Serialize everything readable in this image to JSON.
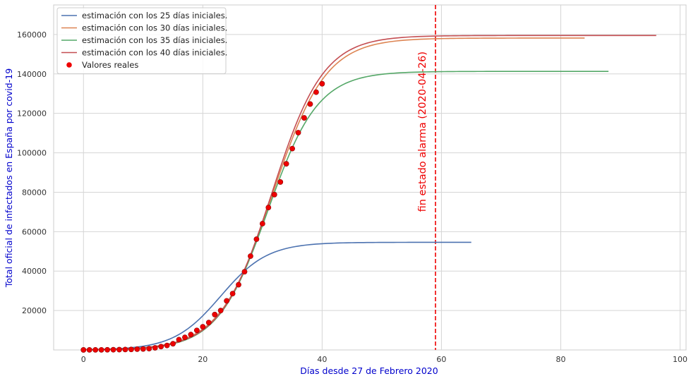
{
  "chart_data": {
    "type": "line",
    "xlabel": "Días desde 27 de Febrero 2020",
    "ylabel": "Total oficial de infectados en España por covid-19",
    "xlim": [
      -5,
      101
    ],
    "ylim": [
      0,
      175000
    ],
    "xticks": [
      0,
      20,
      40,
      60,
      80,
      100
    ],
    "yticks": [
      20000,
      40000,
      60000,
      80000,
      100000,
      120000,
      140000,
      160000
    ],
    "grid": true,
    "legend_position": "top-left",
    "label_color": "#0000cc",
    "series": [
      {
        "name": "estimación con los 25 días iniciales.",
        "color": "#4c72b0",
        "x_max": 65,
        "L": 54600,
        "k": 0.255,
        "x0": 23.0
      },
      {
        "name": "estimación con los 30 días iniciales.",
        "color": "#dd8452",
        "x_max": 84,
        "L": 158200,
        "k": 0.225,
        "x0": 31.7
      },
      {
        "name": "estimación con los 35 días iniciales.",
        "color": "#55a868",
        "x_max": 88,
        "L": 141300,
        "k": 0.238,
        "x0": 30.9
      },
      {
        "name": "estimación con los 40 días iniciales.",
        "color": "#c44e52",
        "x_max": 96,
        "L": 159500,
        "k": 0.232,
        "x0": 31.6
      }
    ],
    "scatter": {
      "name": "Valores reales",
      "color": "#ee0000",
      "x": [
        0,
        1,
        2,
        3,
        4,
        5,
        6,
        7,
        8,
        9,
        10,
        11,
        12,
        13,
        14,
        15,
        16,
        17,
        18,
        19,
        20,
        21,
        22,
        23,
        24,
        25,
        26,
        27,
        28,
        29,
        30,
        31,
        32,
        33,
        34,
        35,
        36,
        37,
        38,
        39,
        40
      ],
      "y": [
        23,
        32,
        45,
        57,
        84,
        120,
        165,
        222,
        259,
        400,
        500,
        673,
        1073,
        1695,
        2277,
        3146,
        5232,
        6391,
        7798,
        9942,
        11748,
        13910,
        17963,
        19980,
        24926,
        28572,
        33089,
        39673,
        47610,
        56188,
        64059,
        72248,
        78797,
        85195,
        94417,
        102136,
        110238,
        117710,
        124736,
        130759,
        135032
      ]
    },
    "annotation": {
      "x": 59,
      "text": "fin estado alarma (2020-04-26)",
      "color": "#ee0000"
    }
  }
}
